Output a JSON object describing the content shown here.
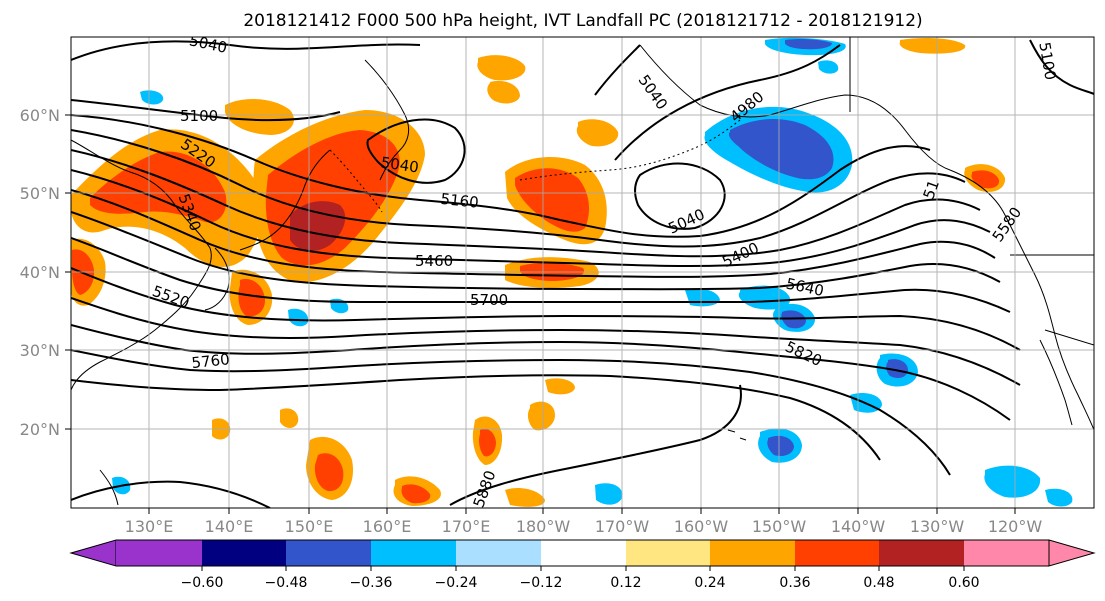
{
  "title": "2018121412 F000 500 hPa height, IVT Landfall PC (2018121712 - 2018121912)",
  "map": {
    "lon_labels": [
      "130°E",
      "140°E",
      "150°E",
      "160°E",
      "170°E",
      "180°W",
      "170°W",
      "160°W",
      "150°W",
      "140°W",
      "130°W",
      "120°W"
    ],
    "lat_labels": [
      "60°N",
      "50°N",
      "40°N",
      "30°N",
      "20°N"
    ],
    "colors": {
      "contour": "#000000",
      "coast": "#000000",
      "grid": "#aaaaaa"
    }
  },
  "contour_labels": [
    {
      "id": "c5040a",
      "text": "5040"
    },
    {
      "id": "c5100a",
      "text": "5100"
    },
    {
      "id": "c5220",
      "text": "5220"
    },
    {
      "id": "c5340",
      "text": "5340"
    },
    {
      "id": "c5520",
      "text": "5520"
    },
    {
      "id": "c5760",
      "text": "5760"
    },
    {
      "id": "c5040b",
      "text": "5040"
    },
    {
      "id": "c5160",
      "text": "5160"
    },
    {
      "id": "c5460",
      "text": "5460"
    },
    {
      "id": "c5700",
      "text": "5700"
    },
    {
      "id": "c5040c",
      "text": "5040"
    },
    {
      "id": "c5400",
      "text": "5400"
    },
    {
      "id": "c5640",
      "text": "5640"
    },
    {
      "id": "c5820",
      "text": "5820"
    },
    {
      "id": "c4980",
      "text": "4980"
    },
    {
      "id": "c5040d",
      "text": "5040"
    },
    {
      "id": "c5100b",
      "text": "5100"
    },
    {
      "id": "c5160b",
      "text": "51"
    },
    {
      "id": "c5580",
      "text": "5580"
    },
    {
      "id": "c5880",
      "text": "5880"
    }
  ],
  "colorbar": {
    "colors": [
      "#9933cc",
      "#000080",
      "#3355cc",
      "#00bfff",
      "#aadfff",
      "#ffffff",
      "#ffe680",
      "#ffa500",
      "#ff4000",
      "#b22222",
      "#ff88aa"
    ],
    "ticks": [
      "−0.60",
      "−0.48",
      "−0.36",
      "−0.24",
      "−0.12",
      "0.12",
      "0.24",
      "0.36",
      "0.48",
      "0.60"
    ]
  }
}
